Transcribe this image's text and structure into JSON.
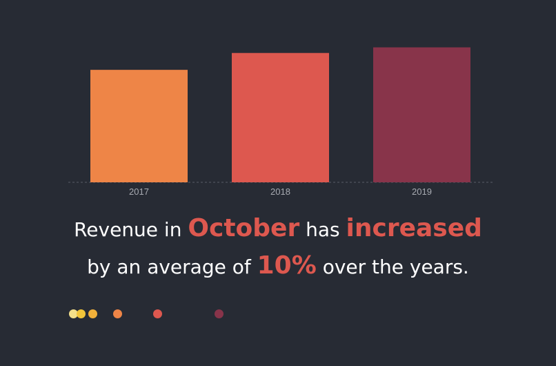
{
  "chart_data": {
    "type": "bar",
    "categories": [
      "2017",
      "2018",
      "2019"
    ],
    "values": [
      100,
      115,
      120
    ],
    "colors": [
      "#ee8547",
      "#dd584f",
      "#88344a"
    ],
    "ylim": [
      0,
      140
    ],
    "grid": false
  },
  "caption": {
    "part1": "Revenue in",
    "highlight1": "October",
    "part2": "has",
    "highlight2": "increased",
    "part3": "by an average of",
    "highlight3": "10%",
    "part4": "over the years.",
    "highlight_color": "#dd584f"
  },
  "indicator_dots": [
    {
      "color": "#f4e08a"
    },
    {
      "color": "#f2c53a"
    },
    {
      "color": "#f2b13a"
    },
    {
      "color": "#ee8547"
    },
    {
      "color": "#dd584f"
    },
    {
      "color": "#88344a"
    }
  ]
}
